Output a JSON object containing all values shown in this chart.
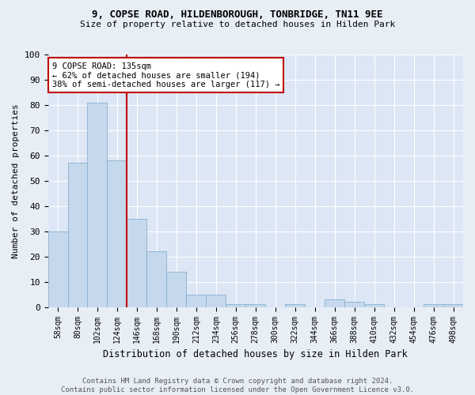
{
  "title": "9, COPSE ROAD, HILDENBOROUGH, TONBRIDGE, TN11 9EE",
  "subtitle": "Size of property relative to detached houses in Hilden Park",
  "xlabel": "Distribution of detached houses by size in Hilden Park",
  "ylabel": "Number of detached properties",
  "bar_labels": [
    "58sqm",
    "80sqm",
    "102sqm",
    "124sqm",
    "146sqm",
    "168sqm",
    "190sqm",
    "212sqm",
    "234sqm",
    "256sqm",
    "278sqm",
    "300sqm",
    "322sqm",
    "344sqm",
    "366sqm",
    "388sqm",
    "410sqm",
    "432sqm",
    "454sqm",
    "476sqm",
    "498sqm"
  ],
  "bar_values": [
    30,
    57,
    81,
    58,
    35,
    22,
    14,
    5,
    5,
    1,
    1,
    0,
    1,
    0,
    3,
    2,
    1,
    0,
    0,
    1,
    1
  ],
  "bar_color": "#c5d8ec",
  "bar_edge_color": "#8ab0d0",
  "annotation_text": "9 COPSE ROAD: 135sqm\n← 62% of detached houses are smaller (194)\n38% of semi-detached houses are larger (117) →",
  "vline_x": 3.5,
  "vline_color": "#c00000",
  "annotation_box_edge": "#c00000",
  "ylim": [
    0,
    100
  ],
  "yticks": [
    0,
    10,
    20,
    30,
    40,
    50,
    60,
    70,
    80,
    90,
    100
  ],
  "footer": "Contains HM Land Registry data © Crown copyright and database right 2024.\nContains public sector information licensed under the Open Government Licence v3.0.",
  "bg_color": "#e8eef6",
  "plot_bg": "#dce6f5"
}
